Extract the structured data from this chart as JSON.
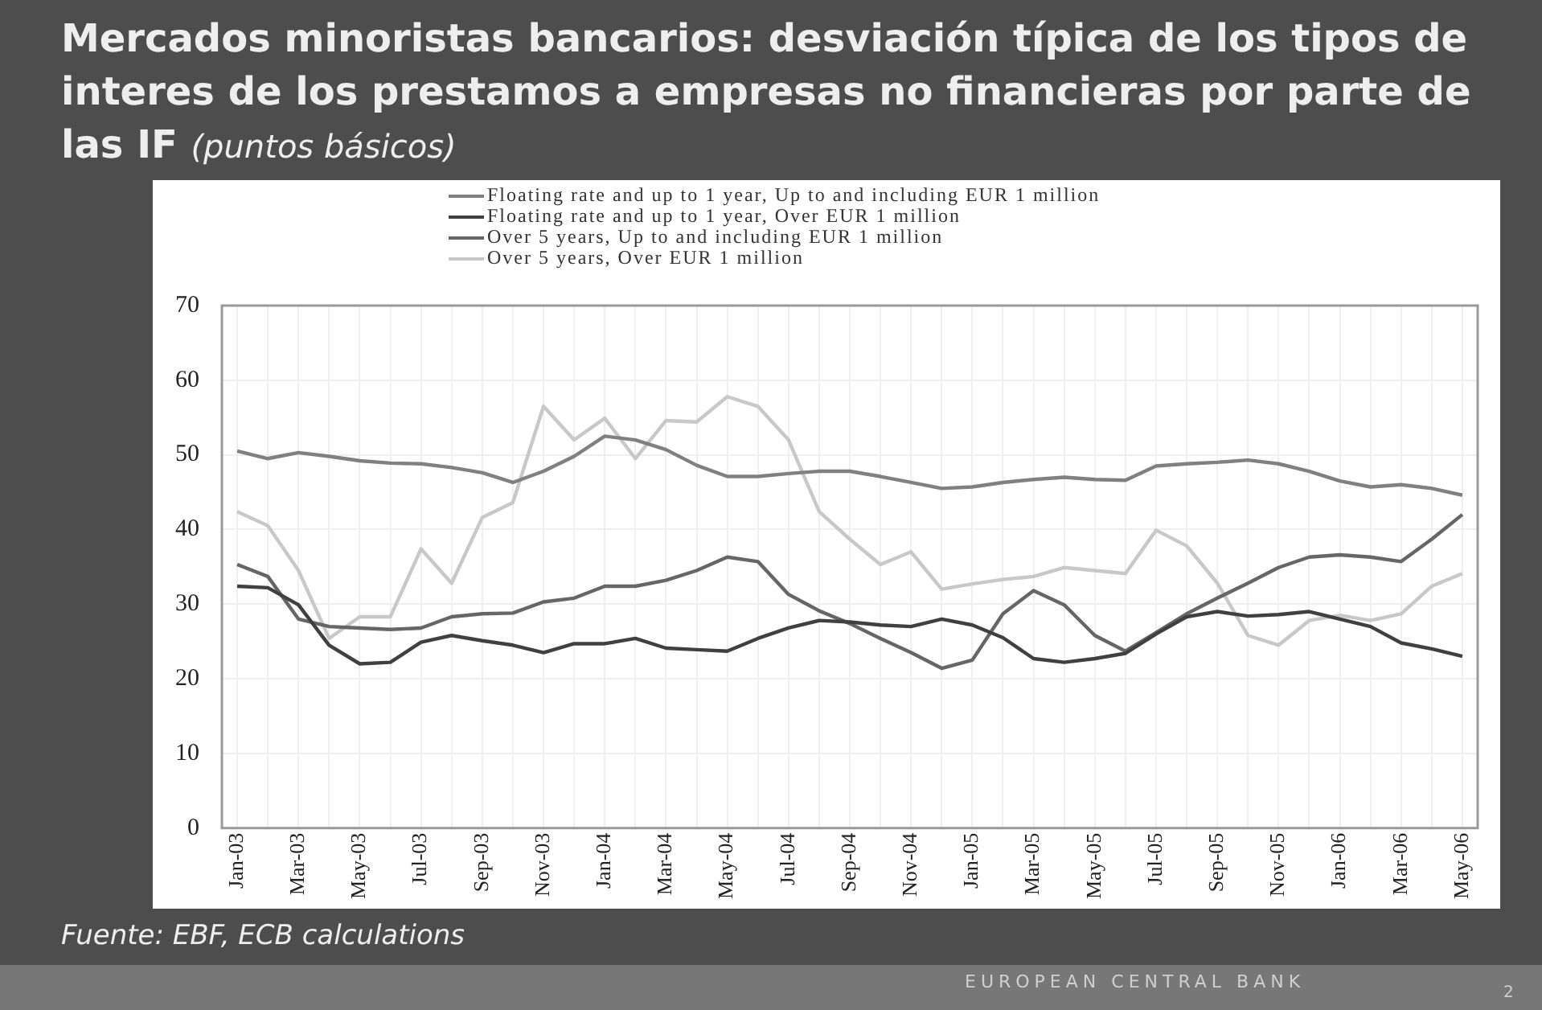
{
  "chart_data": {
    "type": "line",
    "title": "Mercados minoristas bancarios: desviación típica de los tipos de interes de los prestamos a empresas no financieras por parte de las IF",
    "subtitle": "(puntos básicos)",
    "categories": [
      "Jan-03",
      null,
      "Mar-03",
      null,
      "May-03",
      null,
      "Jul-03",
      null,
      "Sep-03",
      null,
      "Nov-03",
      null,
      "Jan-04",
      null,
      "Mar-04",
      null,
      "May-04",
      null,
      "Jul-04",
      null,
      "Sep-04",
      null,
      "Nov-04",
      null,
      "Jan-05",
      null,
      "Mar-05",
      null,
      "May-05",
      null,
      "Jul-05",
      null,
      "Sep-05",
      null,
      "Nov-05",
      null,
      "Jan-06",
      null,
      "Mar-06",
      null,
      "May-06"
    ],
    "series": [
      {
        "name": "Floating rate and up to 1 year, Up to and including EUR 1 million",
        "color": "#808080",
        "values": [
          50.5,
          49.5,
          50.3,
          49.8,
          49.2,
          48.9,
          48.8,
          48.3,
          47.6,
          46.3,
          47.8,
          49.8,
          52.5,
          52.0,
          50.7,
          48.6,
          47.1,
          47.1,
          47.5,
          47.8,
          47.8,
          47.1,
          46.3,
          45.5,
          45.7,
          46.3,
          46.7,
          47.0,
          46.7,
          46.6,
          48.5,
          48.8,
          49.0,
          49.3,
          48.8,
          47.8,
          46.5,
          45.7,
          46.0,
          45.5,
          44.6
        ]
      },
      {
        "name": "Floating rate and up to 1 year, Over EUR 1 million",
        "color": "#404040",
        "values": [
          32.4,
          32.2,
          29.9,
          24.5,
          22.0,
          22.2,
          24.9,
          25.8,
          25.1,
          24.5,
          23.5,
          24.7,
          24.7,
          25.4,
          24.1,
          23.9,
          23.7,
          25.4,
          26.8,
          27.8,
          27.6,
          27.2,
          27.0,
          28.0,
          27.2,
          25.5,
          22.7,
          22.2,
          22.7,
          23.4,
          26.0,
          28.3,
          29.0,
          28.4,
          28.6,
          29.0,
          28.0,
          27.0,
          24.8,
          24.0,
          23.0
        ]
      },
      {
        "name": "Over 5 years, Up to and including EUR 1 million",
        "color": "#666666",
        "values": [
          35.3,
          33.7,
          28.0,
          27.0,
          26.8,
          26.6,
          26.8,
          28.3,
          28.7,
          28.8,
          30.3,
          30.8,
          32.4,
          32.4,
          33.2,
          34.5,
          36.3,
          35.7,
          31.3,
          29.1,
          27.4,
          25.4,
          23.5,
          21.4,
          22.5,
          28.7,
          31.8,
          29.9,
          25.8,
          23.7,
          26.2,
          28.7,
          30.8,
          32.8,
          34.9,
          36.3,
          36.6,
          36.3,
          35.7,
          38.7,
          42.0
        ]
      },
      {
        "name": "Over 5 years,  Over EUR 1 million",
        "color": "#c8c8c8",
        "values": [
          42.4,
          40.5,
          34.5,
          25.4,
          28.3,
          28.3,
          37.4,
          32.8,
          41.6,
          43.6,
          56.5,
          52.0,
          54.9,
          49.5,
          54.6,
          54.4,
          57.8,
          56.5,
          52.0,
          42.4,
          38.7,
          35.3,
          37.0,
          32.0,
          32.7,
          33.3,
          33.7,
          34.9,
          34.5,
          34.1,
          39.9,
          37.8,
          32.8,
          25.8,
          24.5,
          27.8,
          28.5,
          27.8,
          28.7,
          32.4,
          34.1
        ]
      }
    ],
    "ylim": [
      0,
      70
    ],
    "yticks": [
      0,
      10,
      20,
      30,
      40,
      50,
      60,
      70
    ],
    "grid": true,
    "legend": "top",
    "marker": "none",
    "line_style": "solid",
    "annotations": [
      "Fuente: EBF, ECB calculations",
      "EUROPEAN CENTRAL BANK",
      "2"
    ]
  }
}
